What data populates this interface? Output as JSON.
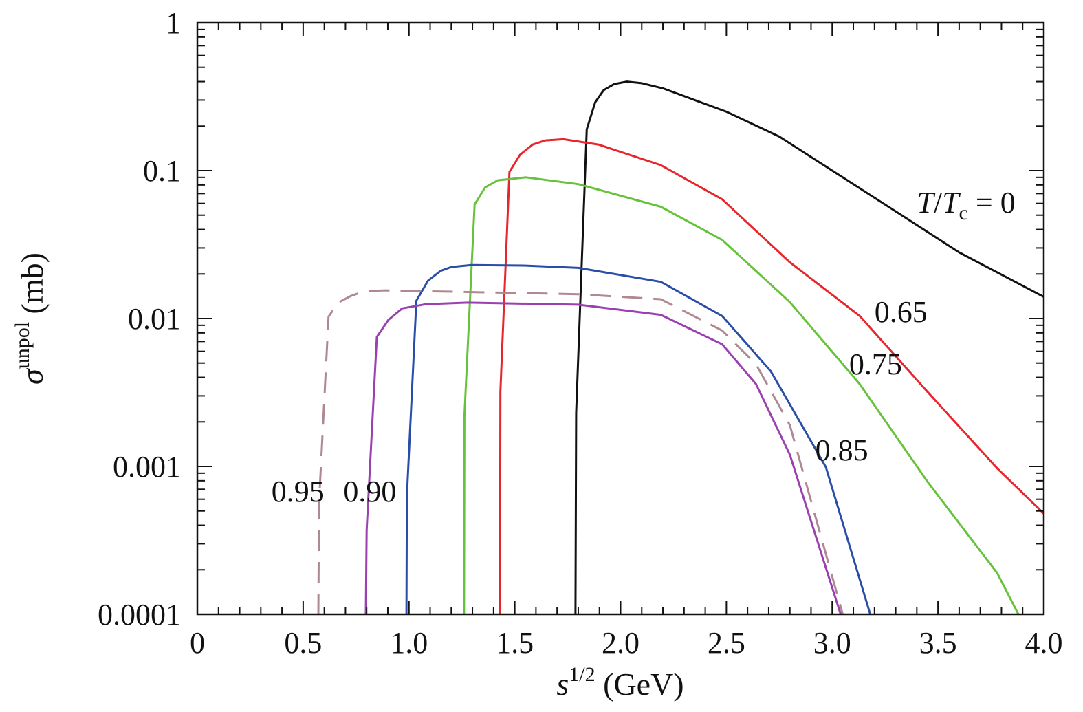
{
  "chart_data": {
    "type": "line",
    "title": "",
    "xlabel": {
      "main": "s",
      "sup": "1/2",
      "unit": " (GeV)"
    },
    "ylabel": {
      "main": "σ",
      "sup": "unpol",
      "unit": " (mb)"
    },
    "xlim": [
      0,
      4.0
    ],
    "ylim": [
      0.0001,
      1
    ],
    "yscale": "log",
    "grid": false,
    "x_ticks": [
      0,
      0.5,
      1.0,
      1.5,
      2.0,
      2.5,
      3.0,
      3.5,
      4.0
    ],
    "x_tick_labels": [
      "0",
      "0.5",
      "1.0",
      "1.5",
      "2.0",
      "2.5",
      "3.0",
      "3.5",
      "4.0"
    ],
    "y_ticks": [
      1,
      0.1,
      0.01,
      0.001,
      0.0001
    ],
    "y_tick_labels": [
      "1",
      "0.1",
      "0.01",
      "0.001",
      "0.0001"
    ],
    "series": [
      {
        "name": "T/Tc = 0",
        "label_parts": [
          "T",
          "/",
          "T",
          "c",
          " = 0"
        ],
        "color": "#111111",
        "dash": false,
        "label_at": [
          3.4,
          0.052
        ],
        "x": [
          1.787,
          1.79,
          1.84,
          1.88,
          1.92,
          1.97,
          2.03,
          2.1,
          2.2,
          2.5,
          2.75,
          3.0,
          3.3,
          3.6,
          4.0
        ],
        "y": [
          0.0001,
          0.0023,
          0.19,
          0.29,
          0.35,
          0.385,
          0.4,
          0.39,
          0.36,
          0.25,
          0.17,
          0.1,
          0.053,
          0.028,
          0.014
        ]
      },
      {
        "name": "0.65",
        "color": "#e8252a",
        "dash": false,
        "label_at": [
          3.2,
          0.0095
        ],
        "x": [
          1.43,
          1.432,
          1.475,
          1.525,
          1.585,
          1.645,
          1.73,
          1.895,
          2.19,
          2.48,
          2.8,
          3.13,
          3.45,
          3.78,
          4.0
        ],
        "y": [
          0.0001,
          0.0032,
          0.098,
          0.128,
          0.15,
          0.16,
          0.163,
          0.15,
          0.109,
          0.064,
          0.024,
          0.0104,
          0.0032,
          0.00097,
          0.00048
        ]
      },
      {
        "name": "0.75",
        "color": "#66c23a",
        "dash": false,
        "label_at": [
          3.08,
          0.0042
        ],
        "x": [
          1.26,
          1.262,
          1.31,
          1.36,
          1.42,
          1.553,
          1.8,
          2.19,
          2.48,
          2.8,
          3.13,
          3.45,
          3.78,
          3.88
        ],
        "y": [
          0.0001,
          0.0022,
          0.059,
          0.077,
          0.086,
          0.09,
          0.081,
          0.057,
          0.034,
          0.0129,
          0.0036,
          0.00079,
          0.00019,
          0.0001
        ]
      },
      {
        "name": "0.85",
        "color": "#2a4ea8",
        "dash": false,
        "label_at": [
          2.92,
          0.0011
        ],
        "x": [
          0.988,
          0.99,
          1.035,
          1.09,
          1.15,
          1.2,
          1.295,
          1.54,
          1.8,
          2.19,
          2.48,
          2.71,
          2.97,
          3.18
        ],
        "y": [
          0.0001,
          0.00063,
          0.0132,
          0.018,
          0.021,
          0.0223,
          0.023,
          0.0228,
          0.022,
          0.0177,
          0.0104,
          0.0044,
          0.00099,
          0.0001
        ]
      },
      {
        "name": "0.90",
        "color": "#9b40b0",
        "dash": false,
        "label_at": [
          0.69,
          0.00058
        ],
        "x": [
          0.796,
          0.8,
          0.848,
          0.903,
          0.968,
          1.08,
          1.277,
          1.8,
          2.19,
          2.48,
          2.64,
          2.8,
          3.04
        ],
        "y": [
          0.0001,
          0.00037,
          0.0075,
          0.0098,
          0.0117,
          0.0125,
          0.0128,
          0.0124,
          0.0106,
          0.0067,
          0.0036,
          0.0012,
          0.0001
        ]
      },
      {
        "name": "0.95",
        "color": "#b08890",
        "dash": true,
        "label_at": [
          0.35,
          0.00058
        ],
        "x": [
          0.572,
          0.575,
          0.62,
          0.666,
          0.725,
          0.79,
          0.887,
          1.8,
          2.19,
          2.48,
          2.64,
          2.8,
          3.05
        ],
        "y": [
          0.0001,
          0.00057,
          0.0103,
          0.0128,
          0.0142,
          0.0153,
          0.0155,
          0.0146,
          0.0135,
          0.0083,
          0.0049,
          0.0019,
          0.0001
        ]
      }
    ]
  }
}
